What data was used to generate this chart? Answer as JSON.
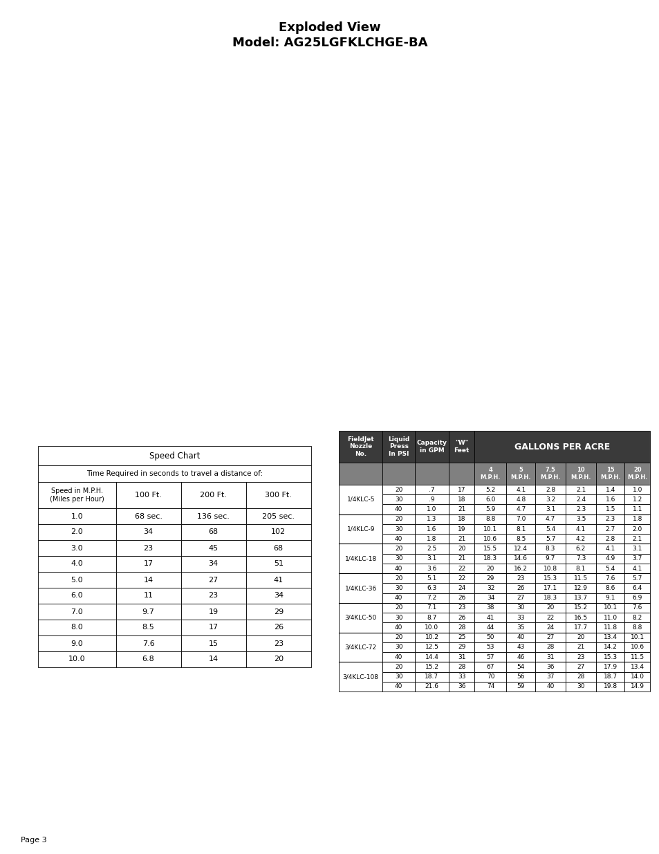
{
  "title_line1": "Exploded View",
  "title_line2": "Model: AG25LGFKLCHGE-BA",
  "page_label": "Page 3",
  "speed_chart": {
    "title": "Speed Chart",
    "subtitle": "Time Required in seconds to travel a distance of:",
    "col_header_left": "Speed in M.P.H.\n(Miles per Hour)",
    "col_headers": [
      "100 Ft.",
      "200 Ft.",
      "300 Ft."
    ],
    "rows": [
      [
        "1.0",
        "68 sec.",
        "136 sec.",
        "205 sec."
      ],
      [
        "2.0",
        "34",
        "68",
        "102"
      ],
      [
        "3.0",
        "23",
        "45",
        "68"
      ],
      [
        "4.0",
        "17",
        "34",
        "51"
      ],
      [
        "5.0",
        "14",
        "27",
        "41"
      ],
      [
        "6.0",
        "11",
        "23",
        "34"
      ],
      [
        "7.0",
        "9.7",
        "19",
        "29"
      ],
      [
        "8.0",
        "8.5",
        "17",
        "26"
      ],
      [
        "9.0",
        "7.6",
        "15",
        "23"
      ],
      [
        "10.0",
        "6.8",
        "14",
        "20"
      ]
    ]
  },
  "gallons_chart": {
    "header_bg": "#3a3a3a",
    "header_fg": "#ffffff",
    "subheader_bg": "#808080",
    "subheader_fg": "#ffffff",
    "nozzle_groups": [
      {
        "nozzle": "1/4KLC-5",
        "rows": [
          [
            "20",
            ".7",
            "17",
            "5.2",
            "4.1",
            "2.8",
            "2.1",
            "1.4",
            "1.0"
          ],
          [
            "30",
            ".9",
            "18",
            "6.0",
            "4.8",
            "3.2",
            "2.4",
            "1.6",
            "1.2"
          ],
          [
            "40",
            "1.0",
            "21",
            "5.9",
            "4.7",
            "3.1",
            "2.3",
            "1.5",
            "1.1"
          ]
        ]
      },
      {
        "nozzle": "1/4KLC-9",
        "rows": [
          [
            "20",
            "1.3",
            "18",
            "8.8",
            "7.0",
            "4.7",
            "3.5",
            "2.3",
            "1.8"
          ],
          [
            "30",
            "1.6",
            "19",
            "10.1",
            "8.1",
            "5.4",
            "4.1",
            "2.7",
            "2.0"
          ],
          [
            "40",
            "1.8",
            "21",
            "10.6",
            "8.5",
            "5.7",
            "4.2",
            "2.8",
            "2.1"
          ]
        ]
      },
      {
        "nozzle": "1/4KLC-18",
        "rows": [
          [
            "20",
            "2.5",
            "20",
            "15.5",
            "12.4",
            "8.3",
            "6.2",
            "4.1",
            "3.1"
          ],
          [
            "30",
            "3.1",
            "21",
            "18.3",
            "14.6",
            "9.7",
            "7.3",
            "4.9",
            "3.7"
          ],
          [
            "40",
            "3.6",
            "22",
            "20",
            "16.2",
            "10.8",
            "8.1",
            "5.4",
            "4.1"
          ]
        ]
      },
      {
        "nozzle": "1/4KLC-36",
        "rows": [
          [
            "20",
            "5.1",
            "22",
            "29",
            "23",
            "15.3",
            "11.5",
            "7.6",
            "5.7"
          ],
          [
            "30",
            "6.3",
            "24",
            "32",
            "26",
            "17.1",
            "12.9",
            "8.6",
            "6.4"
          ],
          [
            "40",
            "7.2",
            "26",
            "34",
            "27",
            "18.3",
            "13.7",
            "9.1",
            "6.9"
          ]
        ]
      },
      {
        "nozzle": "3/4KLC-50",
        "rows": [
          [
            "20",
            "7.1",
            "23",
            "38",
            "30",
            "20",
            "15.2",
            "10.1",
            "7.6"
          ],
          [
            "30",
            "8.7",
            "26",
            "41",
            "33",
            "22",
            "16.5",
            "11.0",
            "8.2"
          ],
          [
            "40",
            "10.0",
            "28",
            "44",
            "35",
            "24",
            "17.7",
            "11.8",
            "8.8"
          ]
        ]
      },
      {
        "nozzle": "3/4KLC-72",
        "rows": [
          [
            "20",
            "10.2",
            "25",
            "50",
            "40",
            "27",
            "20",
            "13.4",
            "10.1"
          ],
          [
            "30",
            "12.5",
            "29",
            "53",
            "43",
            "28",
            "21",
            "14.2",
            "10.6"
          ],
          [
            "40",
            "14.4",
            "31",
            "57",
            "46",
            "31",
            "23",
            "15.3",
            "11.5"
          ]
        ]
      },
      {
        "nozzle": "3/4KLC-108",
        "rows": [
          [
            "20",
            "15.2",
            "28",
            "67",
            "54",
            "36",
            "27",
            "17.9",
            "13.4"
          ],
          [
            "30",
            "18.7",
            "33",
            "70",
            "56",
            "37",
            "28",
            "18.7",
            "14.0"
          ],
          [
            "40",
            "21.6",
            "36",
            "74",
            "59",
            "40",
            "30",
            "19.8",
            "14.9"
          ]
        ]
      }
    ]
  }
}
